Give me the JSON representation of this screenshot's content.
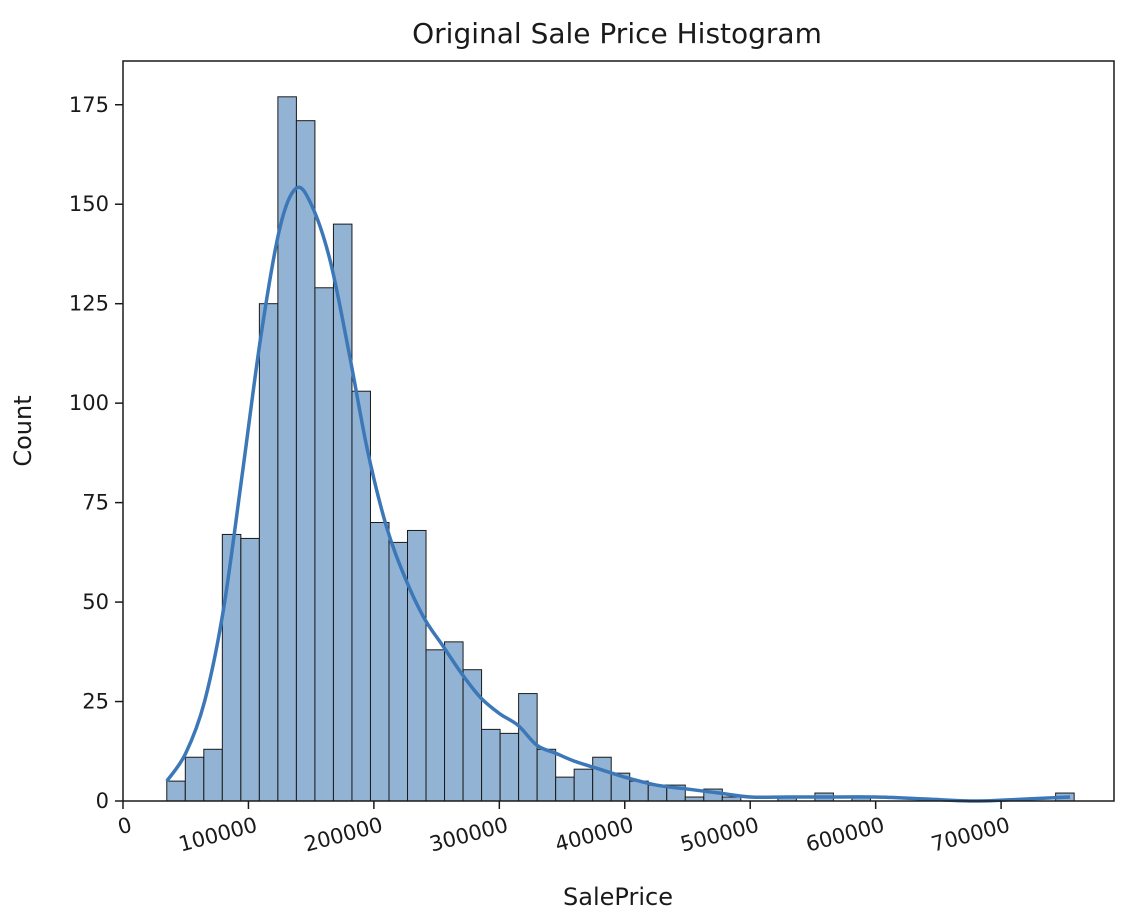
{
  "chart_data": {
    "type": "bar",
    "title": "Original Sale Price Histogram",
    "xlabel": "SalePrice",
    "ylabel": "Count",
    "xlim": [
      0,
      790000
    ],
    "ylim": [
      0,
      186
    ],
    "xticks": [
      0,
      100000,
      200000,
      300000,
      400000,
      500000,
      600000,
      700000
    ],
    "xtick_labels": [
      "0",
      "100000",
      "200000",
      "300000",
      "400000",
      "500000",
      "600000",
      "700000"
    ],
    "xtick_rotation_deg": 15,
    "yticks": [
      0,
      25,
      50,
      75,
      100,
      125,
      150,
      175
    ],
    "ytick_labels": [
      "0",
      "25",
      "50",
      "75",
      "100",
      "125",
      "150",
      "175"
    ],
    "grid": false,
    "bin_start": 34900,
    "bin_width": 14762,
    "counts": [
      5,
      11,
      13,
      67,
      66,
      125,
      177,
      171,
      129,
      145,
      103,
      70,
      65,
      68,
      38,
      40,
      33,
      18,
      17,
      27,
      13,
      6,
      8,
      11,
      7,
      5,
      4,
      4,
      1,
      3,
      1,
      0,
      0,
      1,
      0,
      2,
      0,
      1,
      0,
      0,
      0,
      0,
      0,
      0,
      0,
      0,
      0,
      0,
      2
    ],
    "kde": {
      "x": [
        34900,
        50000,
        65000,
        80000,
        95000,
        110000,
        125000,
        138000,
        150000,
        165000,
        180000,
        195000,
        210000,
        225000,
        240000,
        255000,
        270000,
        285000,
        300000,
        315000,
        330000,
        345000,
        360000,
        380000,
        400000,
        425000,
        450000,
        475000,
        500000,
        530000,
        560000,
        600000,
        640000,
        680000,
        720000,
        755000
      ],
      "y": [
        5,
        12,
        25,
        48,
        82,
        117,
        144,
        154,
        150,
        136,
        113,
        88,
        69,
        56,
        46,
        39,
        32,
        26,
        22,
        19,
        14,
        12,
        10,
        8,
        6,
        4,
        3,
        2,
        1,
        1,
        1,
        1,
        0.5,
        0,
        0.5,
        1
      ]
    },
    "bar_fill": "#92b3d4",
    "bar_edge": "#1a1a1a",
    "kde_color": "#3c78b8"
  }
}
